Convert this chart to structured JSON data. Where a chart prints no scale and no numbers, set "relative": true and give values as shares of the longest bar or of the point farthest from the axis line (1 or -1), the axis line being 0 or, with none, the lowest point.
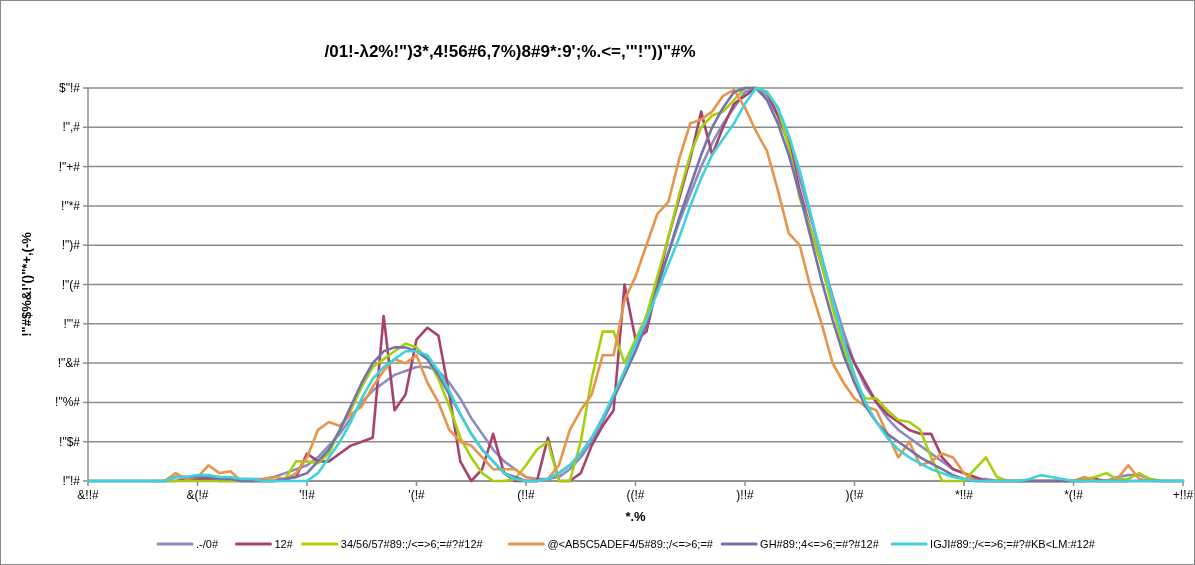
{
  "chart_data": {
    "type": "line",
    "title": "/01!-λ2%!\")3*,4!56#6,7%)8#9*:9';%.<=,'\"!\"))\"#%",
    "xlabel": "*.%",
    "ylabel": "!\"#$%&!'()\"*+,(-%",
    "categories": [
      "&!!#",
      null,
      null,
      null,
      null,
      null,
      null,
      null,
      null,
      null,
      "&(!#",
      null,
      null,
      null,
      null,
      null,
      null,
      null,
      null,
      null,
      "'!!#",
      null,
      null,
      null,
      null,
      null,
      null,
      null,
      null,
      null,
      "'(!#",
      null,
      null,
      null,
      null,
      null,
      null,
      null,
      null,
      null,
      "(!!#",
      null,
      null,
      null,
      null,
      null,
      null,
      null,
      null,
      null,
      "((!#",
      null,
      null,
      null,
      null,
      null,
      null,
      null,
      null,
      null,
      ")!!#",
      null,
      null,
      null,
      null,
      null,
      null,
      null,
      null,
      null,
      ")(!#",
      null,
      null,
      null,
      null,
      null,
      null,
      null,
      null,
      null,
      "*!!#",
      null,
      null,
      null,
      null,
      null,
      null,
      null,
      null,
      null,
      "*(!#",
      null,
      null,
      null,
      null,
      null,
      null,
      null,
      null,
      null,
      "+!!#"
    ],
    "relative": true,
    "annotations": [
      "!\"!#",
      "!\"$#",
      "!\"%#",
      "!\"&#",
      "!\"'#",
      "!\"(#",
      "!\")#",
      "!\"*#",
      "!\"+#",
      "!\",#",
      "$\"!#"
    ],
    "grid": "y",
    "legend": "bottom",
    "series": [
      {
        "name": ".-/0#",
        "color": "#8c8cc2",
        "values": [
          0,
          0,
          0,
          0,
          0,
          0,
          0,
          0,
          0.01,
          0.01,
          0.01,
          0.01,
          0.01,
          0.005,
          0.005,
          0.005,
          0.005,
          0.01,
          0.02,
          0.03,
          0.04,
          0.06,
          0.09,
          0.12,
          0.16,
          0.2,
          0.23,
          0.25,
          0.27,
          0.28,
          0.29,
          0.29,
          0.28,
          0.25,
          0.21,
          0.16,
          0.12,
          0.08,
          0.05,
          0.03,
          0.01,
          0.005,
          0.005,
          0.01,
          0.03,
          0.06,
          0.1,
          0.15,
          0.21,
          0.28,
          0.35,
          0.42,
          0.5,
          0.58,
          0.66,
          0.73,
          0.8,
          0.86,
          0.91,
          0.95,
          0.99,
          1.0,
          0.98,
          0.93,
          0.86,
          0.77,
          0.67,
          0.57,
          0.47,
          0.38,
          0.3,
          0.24,
          0.2,
          0.16,
          0.13,
          0.11,
          0.09,
          0.07,
          0.05,
          0.03,
          0.02,
          0.005,
          0.005,
          0,
          0,
          0,
          0,
          0,
          0,
          0,
          0,
          0,
          0,
          0,
          0.01,
          0.015,
          0.015,
          0.005,
          0,
          0,
          0
        ]
      },
      {
        "name": "12#",
        "color": "#a8416f",
        "values": [
          null,
          null,
          null,
          null,
          null,
          null,
          null,
          0,
          0,
          0.005,
          0.005,
          0.005,
          0,
          0,
          0,
          0,
          0,
          0,
          0.005,
          0.01,
          0.07,
          0.05,
          0.05,
          0.07,
          0.09,
          0.1,
          0.11,
          0.42,
          0.18,
          0.22,
          0.36,
          0.39,
          0.37,
          0.22,
          0.05,
          0,
          0.03,
          0.12,
          0.02,
          0,
          0,
          0,
          0.11,
          0,
          0,
          0.02,
          0.09,
          0.14,
          0.18,
          0.5,
          0.36,
          0.38,
          0.5,
          0.62,
          0.72,
          0.82,
          0.94,
          0.83,
          0.9,
          0.96,
          0.98,
          1.0,
          0.99,
          0.93,
          0.86,
          0.74,
          0.64,
          0.55,
          0.45,
          0.36,
          0.3,
          0.25,
          0.2,
          0.17,
          0.15,
          0.13,
          0.12,
          0.12,
          0.06,
          0.03,
          0.02,
          0.01,
          0,
          0,
          0,
          0,
          0,
          0,
          0,
          0,
          0,
          0,
          0.005,
          0,
          0,
          0,
          null,
          null,
          null,
          null,
          null
        ]
      },
      {
        "name": "34/56/57#89:;/<=>6;=#?#12#",
        "color": "#a6d00e",
        "values": [
          null,
          null,
          null,
          null,
          null,
          null,
          0,
          0,
          0,
          0,
          0,
          0,
          0,
          0,
          0,
          0,
          0,
          0,
          0.005,
          0.05,
          0.05,
          0.045,
          0.07,
          0.13,
          0.18,
          0.24,
          0.29,
          0.31,
          0.33,
          0.35,
          0.34,
          0.31,
          0.26,
          0.19,
          0.11,
          0.06,
          0.02,
          0,
          0,
          0.005,
          0.04,
          0.08,
          0.1,
          0,
          0,
          0.1,
          0.26,
          0.38,
          0.38,
          0.3,
          0.36,
          0.42,
          0.52,
          0.62,
          0.73,
          0.83,
          0.9,
          0.93,
          0.94,
          0.97,
          1.0,
          1.0,
          0.99,
          0.95,
          0.85,
          0.72,
          0.64,
          0.55,
          0.44,
          0.34,
          0.25,
          0.21,
          0.21,
          0.18,
          0.155,
          0.15,
          0.13,
          0.06,
          0,
          0,
          0,
          0.03,
          0.06,
          0.01,
          0,
          0,
          0,
          0,
          0,
          0,
          0,
          0.005,
          0.01,
          0.02,
          0.005,
          0.005,
          0.02,
          0.005,
          0,
          0,
          0
        ]
      },
      {
        "name": "@<AB5C5ADEF4/5#89:;/<=>6;=#",
        "color": "#e8944a",
        "values": [
          null,
          null,
          null,
          null,
          null,
          null,
          null,
          0,
          0.02,
          0.005,
          0.01,
          0.04,
          0.02,
          0.025,
          0,
          0,
          0.005,
          0.01,
          0.005,
          0.02,
          0.06,
          0.13,
          0.15,
          0.14,
          0.17,
          0.19,
          0.24,
          0.28,
          0.31,
          0.3,
          0.32,
          0.25,
          0.2,
          0.13,
          0.1,
          0.09,
          0.06,
          0.03,
          0.03,
          0.03,
          0.01,
          0,
          0.005,
          0.04,
          0.13,
          0.18,
          0.22,
          0.32,
          0.32,
          0.46,
          0.52,
          0.6,
          0.68,
          0.71,
          0.82,
          0.91,
          0.92,
          0.94,
          0.98,
          0.995,
          0.95,
          0.89,
          0.84,
          0.74,
          0.63,
          0.6,
          0.49,
          0.4,
          0.3,
          0.25,
          0.21,
          0.19,
          0.18,
          0.12,
          0.06,
          0.1,
          0.04,
          0.05,
          0.07,
          0.06,
          0.02,
          0,
          0,
          0,
          0,
          0,
          0,
          0,
          0,
          0,
          0,
          0.01,
          0,
          0,
          0.005,
          0.04,
          0.005,
          0,
          0,
          null,
          null
        ]
      },
      {
        "name": "GH#89:;4<=>6;=#?#12#",
        "color": "#7672aa",
        "values": [
          0,
          0,
          0,
          0,
          0,
          0,
          0,
          0,
          0.01,
          0.01,
          0.01,
          0.01,
          0.005,
          0.005,
          0,
          0,
          0,
          0,
          0.005,
          0.01,
          0.02,
          0.05,
          0.08,
          0.13,
          0.19,
          0.25,
          0.3,
          0.33,
          0.34,
          0.34,
          0.33,
          0.31,
          0.27,
          0.22,
          0.17,
          0.12,
          0.08,
          0.05,
          0.02,
          0.01,
          0,
          0,
          0.005,
          0.02,
          0.04,
          0.07,
          0.11,
          0.16,
          0.21,
          0.27,
          0.33,
          0.4,
          0.49,
          0.58,
          0.67,
          0.75,
          0.83,
          0.9,
          0.95,
          0.99,
          1.0,
          1.0,
          0.97,
          0.91,
          0.83,
          0.73,
          0.62,
          0.51,
          0.41,
          0.32,
          0.25,
          0.19,
          0.15,
          0.12,
          0.1,
          0.08,
          0.06,
          0.045,
          0.03,
          0.015,
          0.005,
          0,
          0,
          0,
          0,
          0,
          0,
          0,
          0,
          0,
          0,
          0,
          0,
          0,
          0,
          0,
          0,
          0,
          0,
          0,
          0
        ]
      },
      {
        "name": "IGJI#89:;/<=>6;=#?#KB<LM:#12#",
        "color": "#3ed3da",
        "values": [
          0,
          0,
          0,
          0,
          0,
          0,
          0,
          0,
          0.01,
          0.01,
          0.015,
          0.015,
          0.01,
          0.01,
          0.005,
          0.005,
          0,
          0,
          0,
          0,
          0,
          0.02,
          0.06,
          0.1,
          0.15,
          0.21,
          0.26,
          0.29,
          0.31,
          0.33,
          0.33,
          0.32,
          0.28,
          0.23,
          0.17,
          0.12,
          0.08,
          0.05,
          0.02,
          0.005,
          0,
          0,
          0.005,
          0.02,
          0.04,
          0.07,
          0.11,
          0.16,
          0.22,
          0.28,
          0.35,
          0.41,
          0.48,
          0.55,
          0.62,
          0.7,
          0.77,
          0.83,
          0.87,
          0.91,
          0.96,
          1.0,
          0.99,
          0.95,
          0.88,
          0.79,
          0.68,
          0.57,
          0.46,
          0.36,
          0.27,
          0.2,
          0.15,
          0.11,
          0.08,
          0.06,
          0.045,
          0.03,
          0.02,
          0.01,
          0.005,
          0,
          0,
          0,
          0,
          0,
          0.005,
          0.015,
          0.01,
          0.005,
          0,
          0,
          0,
          0,
          0,
          0,
          0,
          0,
          0,
          0,
          0
        ]
      }
    ]
  }
}
